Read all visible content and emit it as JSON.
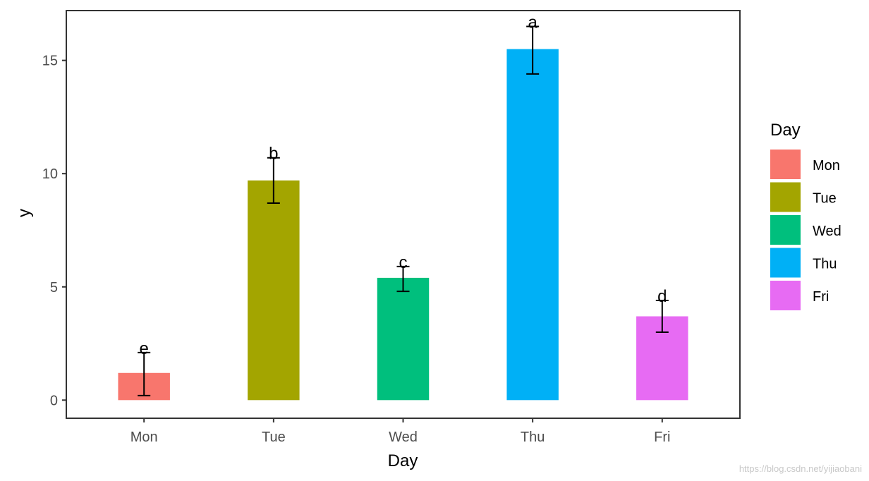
{
  "chart_data": {
    "type": "bar",
    "categories": [
      "Mon",
      "Tue",
      "Wed",
      "Thu",
      "Fri"
    ],
    "values": [
      1.2,
      9.7,
      5.4,
      15.5,
      3.7
    ],
    "error_low": [
      0.2,
      8.7,
      4.8,
      14.4,
      3.0
    ],
    "error_high": [
      2.1,
      10.7,
      5.9,
      16.5,
      4.4
    ],
    "significance_letters": [
      "e",
      "b",
      "c",
      "a",
      "d"
    ],
    "colors": [
      "#F8766D",
      "#A3A500",
      "#00BF7D",
      "#00B0F6",
      "#E76BF3"
    ],
    "xlabel": "Day",
    "ylabel": "y",
    "ylim": [
      -0.8,
      17.2
    ],
    "yticks": [
      "0",
      "5",
      "10",
      "15"
    ],
    "ytick_values": [
      0,
      5,
      10,
      15
    ],
    "legend": {
      "title": "Day",
      "entries": [
        "Mon",
        "Tue",
        "Wed",
        "Thu",
        "Fri"
      ],
      "position": "right"
    },
    "grid": false
  },
  "watermark": "https://blog.csdn.net/yijiaobani"
}
